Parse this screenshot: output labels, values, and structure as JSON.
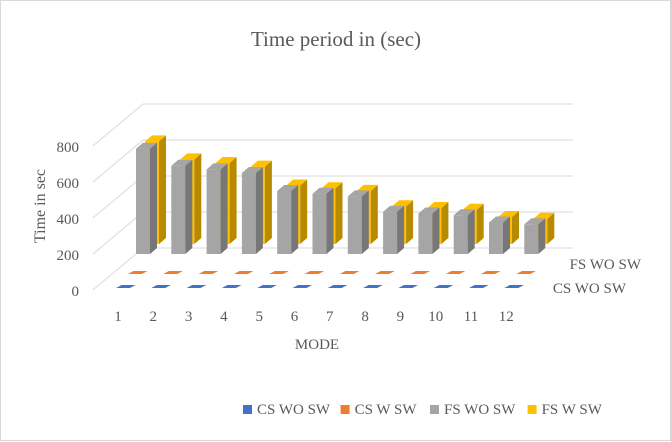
{
  "chart_data": {
    "type": "bar",
    "subtype": "3d-column",
    "title": "Time period in (sec)",
    "xlabel": "MODE",
    "ylabel": "Time in sec",
    "ylim": [
      0,
      800
    ],
    "y_ticks": [
      "0",
      "200",
      "400",
      "600",
      "800"
    ],
    "categories": [
      "1",
      "2",
      "3",
      "4",
      "5",
      "6",
      "7",
      "8",
      "9",
      "10",
      "11",
      "12"
    ],
    "depth_axis_labels": [
      "CS WO SW",
      "FS WO SW"
    ],
    "legend_position": "bottom",
    "gridlines": true,
    "series": [
      {
        "name": "CS WO SW",
        "color": "#4472C4",
        "values": [
          1,
          1,
          1,
          1,
          1,
          1,
          1,
          1,
          1,
          1,
          1,
          1
        ]
      },
      {
        "name": "CS W SW",
        "color": "#ED7D31",
        "values": [
          1,
          1,
          1,
          1,
          1,
          1,
          1,
          1,
          1,
          1,
          1,
          1
        ]
      },
      {
        "name": "FS WO SW",
        "color": "#A5A5A5",
        "values": [
          585,
          490,
          470,
          450,
          350,
          335,
          320,
          235,
          225,
          215,
          175,
          165
        ]
      },
      {
        "name": "FS W SW",
        "color": "#FFC000",
        "values": [
          570,
          470,
          450,
          430,
          325,
          310,
          295,
          210,
          200,
          190,
          150,
          140
        ]
      }
    ]
  }
}
